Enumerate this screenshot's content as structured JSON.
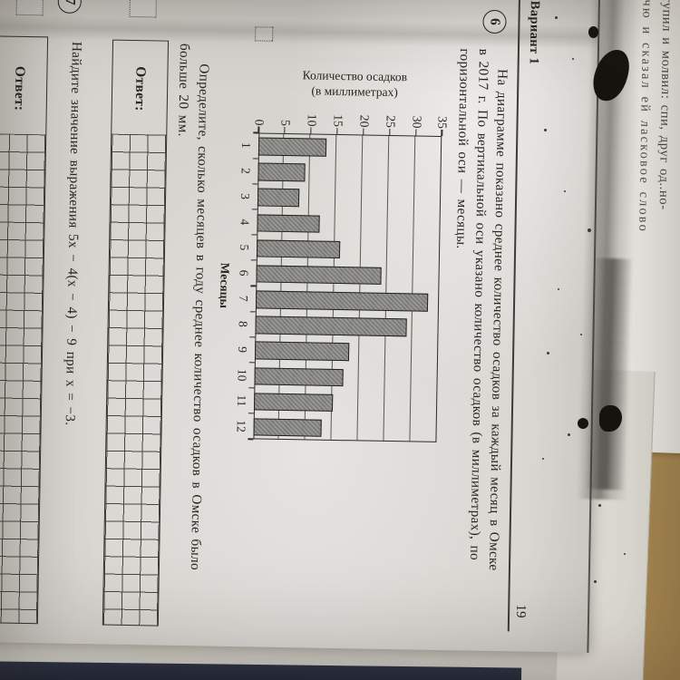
{
  "page": {
    "number": "19",
    "variant_label": "Вариант 1"
  },
  "task6": {
    "number": "6",
    "statement_lines": [
      "На диаграмме показано среднее количество осадков за каждый месяц в Омске",
      "в 2017 г. По вертикальной оси указано количество осадков (в миллиметрах), по",
      "горизонтальной оси — месяцы."
    ],
    "question_lines": [
      "Определите, сколько месяцев в году среднее количество осадков в Омске было",
      "больше 20 мм."
    ],
    "answer_label": "Ответ:"
  },
  "task7": {
    "number": "7",
    "text": "Найдите значение выражения 5x − 4(x − 4) − 9 при x = −3.",
    "answer_label": "Ответ:"
  },
  "chart_data": {
    "type": "bar",
    "title_lines": [
      "Количество осадков",
      "(в миллиметрах)"
    ],
    "xlabel": "Месяцы",
    "categories": [
      "1",
      "2",
      "3",
      "4",
      "5",
      "6",
      "7",
      "8",
      "9",
      "10",
      "11",
      "12"
    ],
    "values": [
      13,
      9,
      8,
      12,
      16,
      24,
      33,
      29,
      18,
      17,
      15,
      13
    ],
    "yticks": [
      0,
      5,
      10,
      15,
      20,
      25,
      30,
      35
    ],
    "ylim": [
      0,
      35
    ],
    "grid": true,
    "legend": null
  },
  "background_page": {
    "line1": "аступил и молвил: спи, друг од..но-",
    "line2": "отчю и сказал ей ласковое слово"
  },
  "colors": {
    "paper": "#d6d4cf",
    "desk_tan": "#b2925f",
    "cover_navy": "#242938",
    "bar_fill": "#908f8b"
  }
}
